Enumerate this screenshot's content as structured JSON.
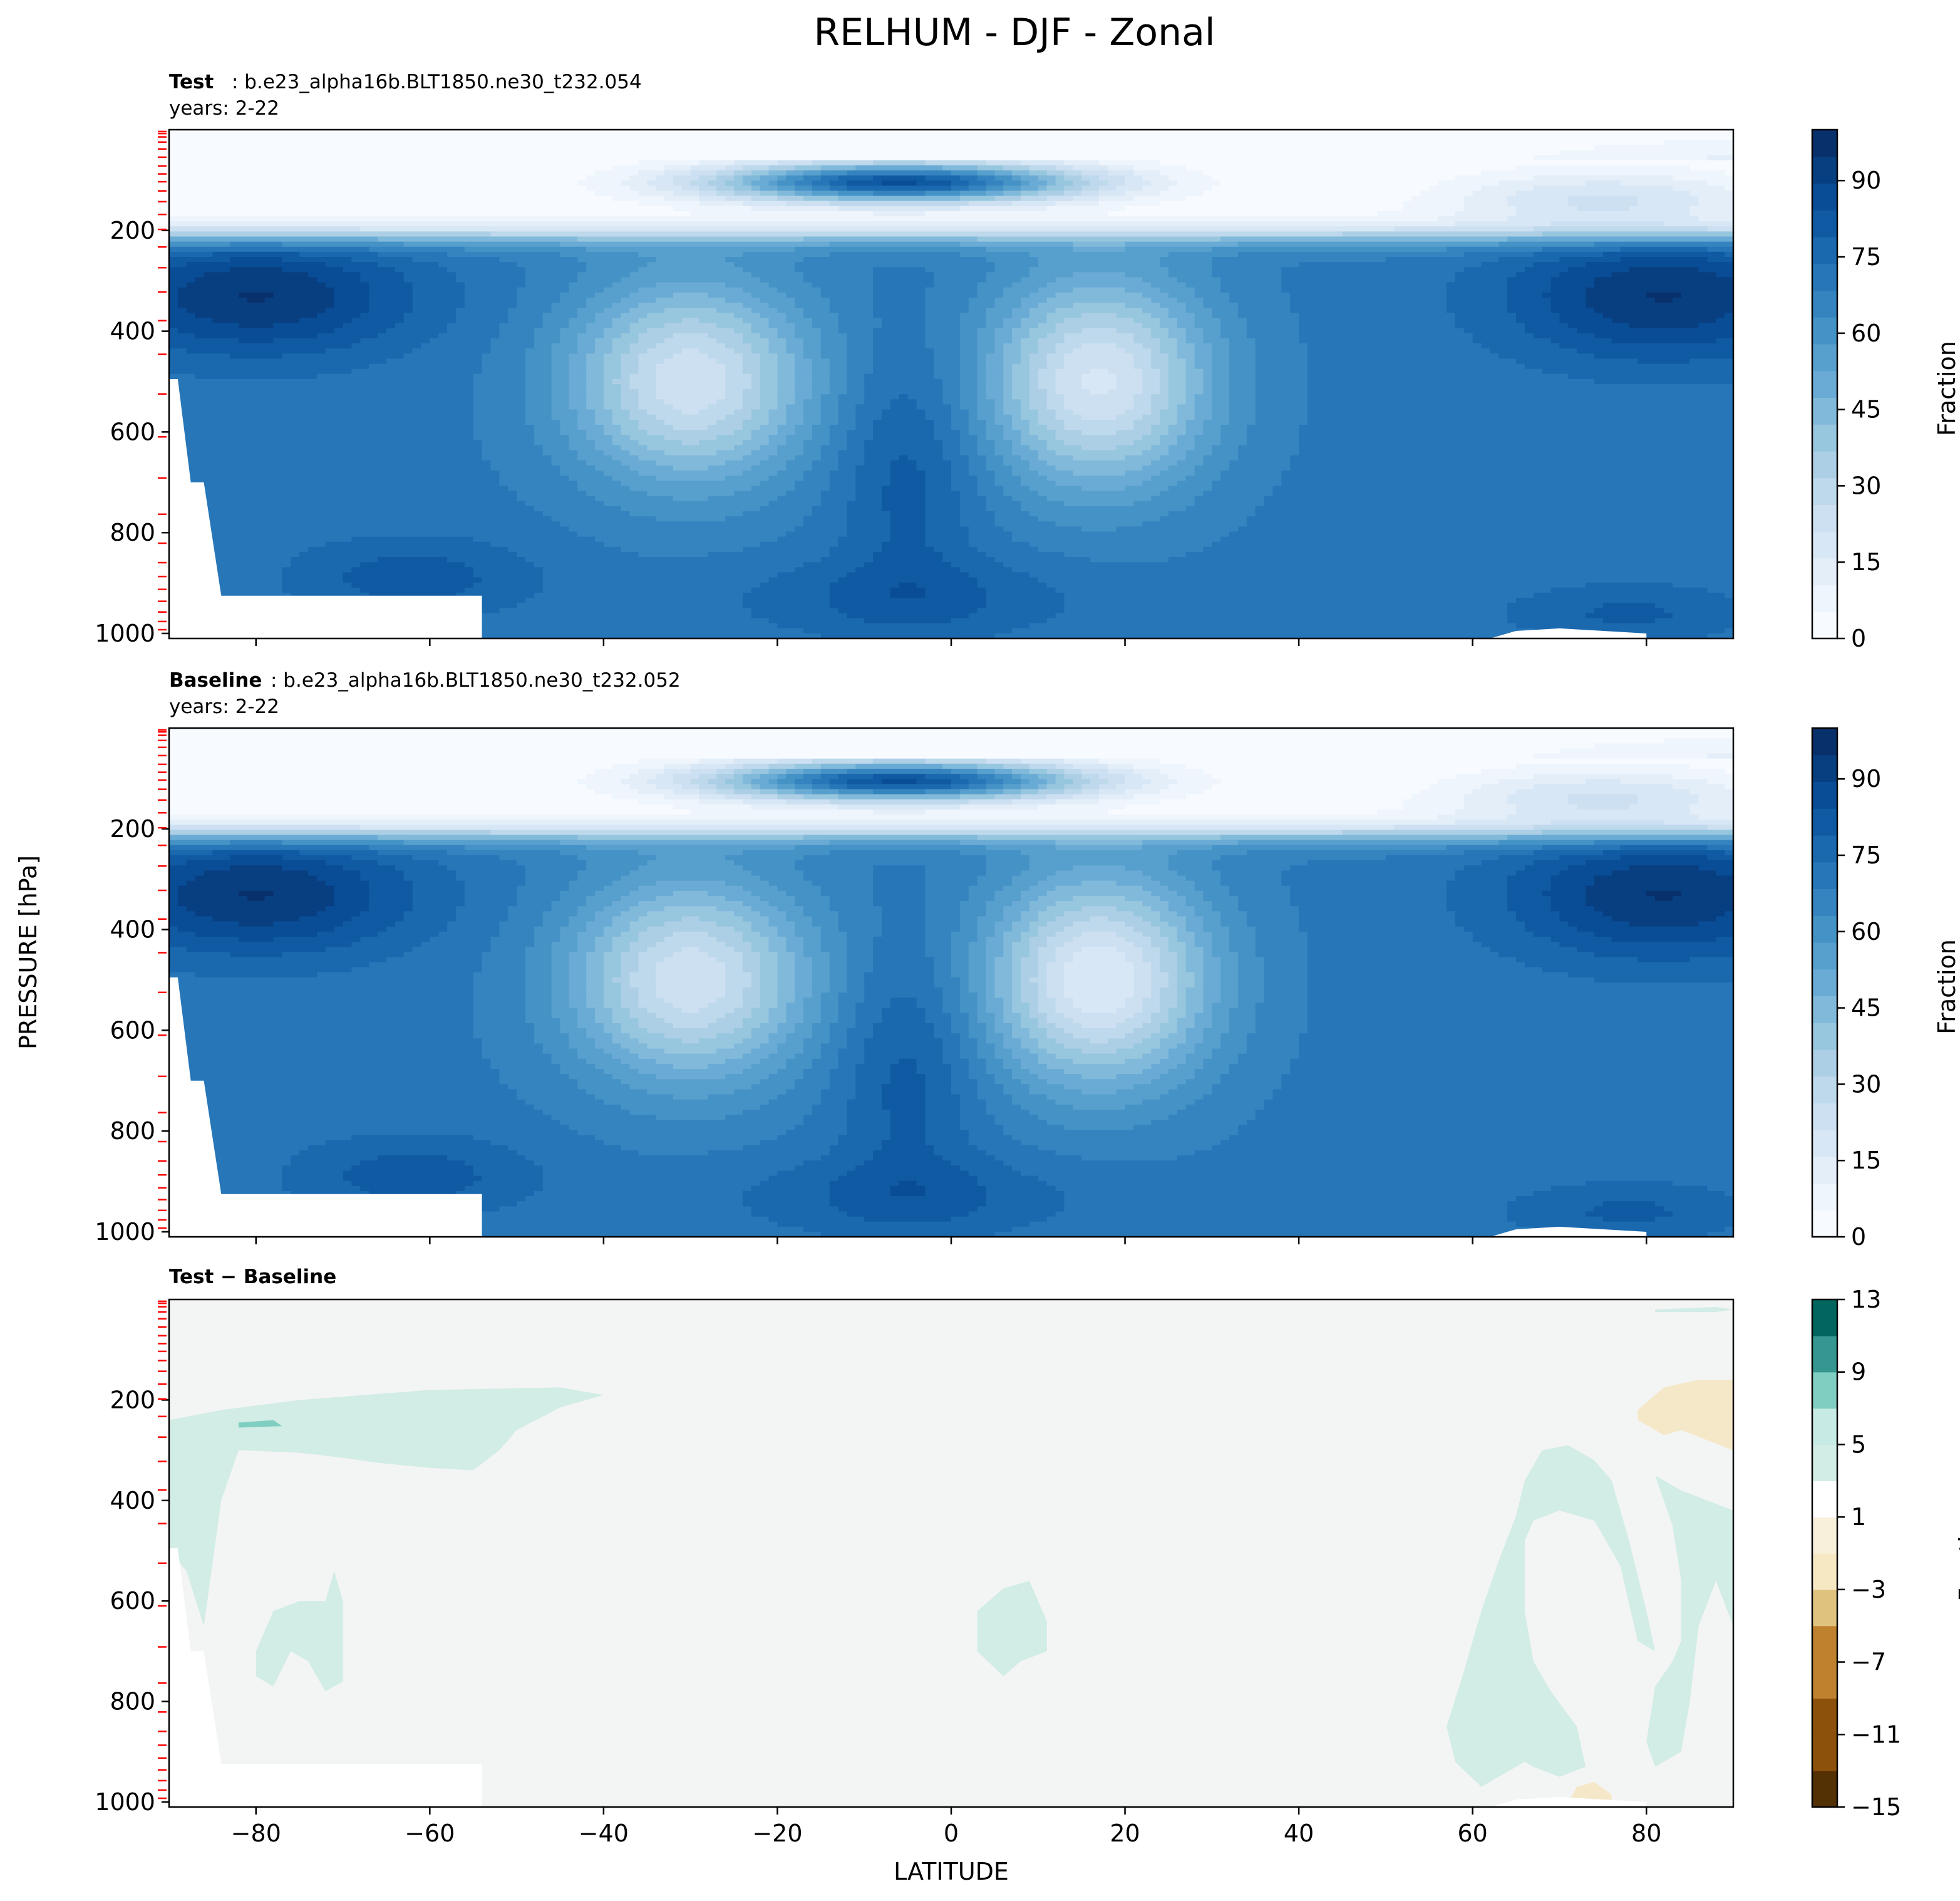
{
  "figure": {
    "suptitle": "RELHUM - DJF - Zonal",
    "ylabel": "PRESSURE [hPa]",
    "xlabel": "LATITUDE"
  },
  "panels": [
    {
      "id": "test",
      "title_bold": "Test",
      "title_rest": ": b.e23_alpha16b.BLT1850.ne30_t232.054",
      "years": "years: 2-22",
      "colorbar_label": "Fraction"
    },
    {
      "id": "baseline",
      "title_bold": "Baseline",
      "title_rest": ": b.e23_alpha16b.BLT1850.ne30_t232.052",
      "years": "years: 2-22",
      "colorbar_label": "Fraction"
    },
    {
      "id": "diff",
      "title_bold": "Test − Baseline",
      "title_rest": "",
      "years": "",
      "colorbar_label": "Fraction"
    }
  ],
  "colors": {
    "blues": [
      "#f7fbff",
      "#eef5fc",
      "#e3eef9",
      "#d8e7f5",
      "#cde0f1",
      "#bed8ec",
      "#accfe5",
      "#97c6df",
      "#80b9da",
      "#69abd5",
      "#579fcd",
      "#4592c6",
      "#3584bf",
      "#2676b8",
      "#1a68ae",
      "#0f5aa3",
      "#084d96",
      "#083f80",
      "#08306b"
    ],
    "brbg": [
      "#543005",
      "#8c510a",
      "#bf812d",
      "#dfc27d",
      "#f6e8c3",
      "#f5f5f5",
      "#c7eae5",
      "#80cdc1",
      "#35978f",
      "#01665e",
      "#003c30"
    ],
    "diff_background": "#f3f5f4",
    "diff_positive": "#d2ece6",
    "diff_negative": "#f5e8c8",
    "level_ticks": "#ff0000"
  },
  "chart_data": [
    {
      "type": "contour",
      "panel": "test",
      "title": "Test : b.e23_alpha16b.BLT1850.ne30_t232.054",
      "xlabel": "LATITUDE",
      "ylabel": "PRESSURE [hPa]",
      "xlim": [
        -90,
        90
      ],
      "ylim": [
        1000,
        0
      ],
      "yticks": [
        200,
        400,
        600,
        800,
        1000
      ],
      "xticks": [
        -80,
        -60,
        -40,
        -20,
        0,
        20,
        40,
        60,
        80
      ],
      "colorbar": {
        "label": "Fraction",
        "range": [
          0,
          100
        ],
        "ticks": [
          0,
          15,
          30,
          45,
          60,
          75,
          90
        ],
        "colormap": "Blues"
      },
      "features": [
        {
          "kind": "max",
          "lat": -85,
          "pressure": 350,
          "value": 95
        },
        {
          "kind": "max",
          "lat": 85,
          "pressure": 350,
          "value": 95
        },
        {
          "kind": "max",
          "lat": -5,
          "pressure": 100,
          "value": 90
        },
        {
          "kind": "min",
          "lat": -30,
          "pressure": 500,
          "value": 25
        },
        {
          "kind": "min",
          "lat": 18,
          "pressure": 500,
          "value": 20
        },
        {
          "kind": "dry",
          "lat": 0,
          "pressure": 50,
          "value": 3
        }
      ]
    },
    {
      "type": "contour",
      "panel": "baseline",
      "title": "Baseline : b.e23_alpha16b.BLT1850.ne30_t232.052",
      "xlabel": "LATITUDE",
      "ylabel": "PRESSURE [hPa]",
      "xlim": [
        -90,
        90
      ],
      "ylim": [
        1000,
        0
      ],
      "yticks": [
        200,
        400,
        600,
        800,
        1000
      ],
      "xticks": [
        -80,
        -60,
        -40,
        -20,
        0,
        20,
        40,
        60,
        80
      ],
      "colorbar": {
        "label": "Fraction",
        "range": [
          0,
          100
        ],
        "ticks": [
          0,
          15,
          30,
          45,
          60,
          75,
          90
        ],
        "colormap": "Blues"
      },
      "features": [
        {
          "kind": "max",
          "lat": -85,
          "pressure": 350,
          "value": 95
        },
        {
          "kind": "max",
          "lat": 85,
          "pressure": 350,
          "value": 95
        },
        {
          "kind": "max",
          "lat": -5,
          "pressure": 100,
          "value": 90
        },
        {
          "kind": "min",
          "lat": -30,
          "pressure": 500,
          "value": 25
        },
        {
          "kind": "min",
          "lat": 18,
          "pressure": 500,
          "value": 18
        },
        {
          "kind": "dry",
          "lat": 0,
          "pressure": 50,
          "value": 3
        }
      ]
    },
    {
      "type": "contour",
      "panel": "diff",
      "title": "Test − Baseline",
      "xlabel": "LATITUDE",
      "ylabel": "PRESSURE [hPa]",
      "xlim": [
        -90,
        90
      ],
      "ylim": [
        1000,
        0
      ],
      "yticks": [
        200,
        400,
        600,
        800,
        1000
      ],
      "xticks": [
        -80,
        -60,
        -40,
        -20,
        0,
        20,
        40,
        60,
        80
      ],
      "colorbar": {
        "label": "Fraction",
        "range": [
          -15,
          13
        ],
        "ticks": [
          -15,
          -11,
          -7,
          -3,
          1,
          5,
          9,
          13
        ],
        "colormap": "BrBG"
      },
      "features": [
        {
          "kind": "positive",
          "lat": -60,
          "pressure": 300,
          "value": 2
        },
        {
          "kind": "positive",
          "lat": 8,
          "pressure": 680,
          "value": 2
        },
        {
          "kind": "positive",
          "lat": 72,
          "pressure": 600,
          "value": 2
        },
        {
          "kind": "negative",
          "lat": 85,
          "pressure": 250,
          "value": -2
        },
        {
          "kind": "negative",
          "lat": 73,
          "pressure": 990,
          "value": -2
        }
      ]
    }
  ],
  "model_levels_hpa": [
    3.6,
    7.6,
    14.4,
    24.6,
    38.3,
    54.6,
    72.0,
    87.8,
    103.3,
    121.5,
    142.9,
    168.2,
    197.9,
    232.8,
    273.9,
    322.2,
    379.1,
    445.9,
    524.7,
    609.8,
    691.4,
    763.4,
    820.9,
    859.5,
    887.0,
    912.6,
    936.2,
    957.5,
    976.3,
    992.6
  ]
}
